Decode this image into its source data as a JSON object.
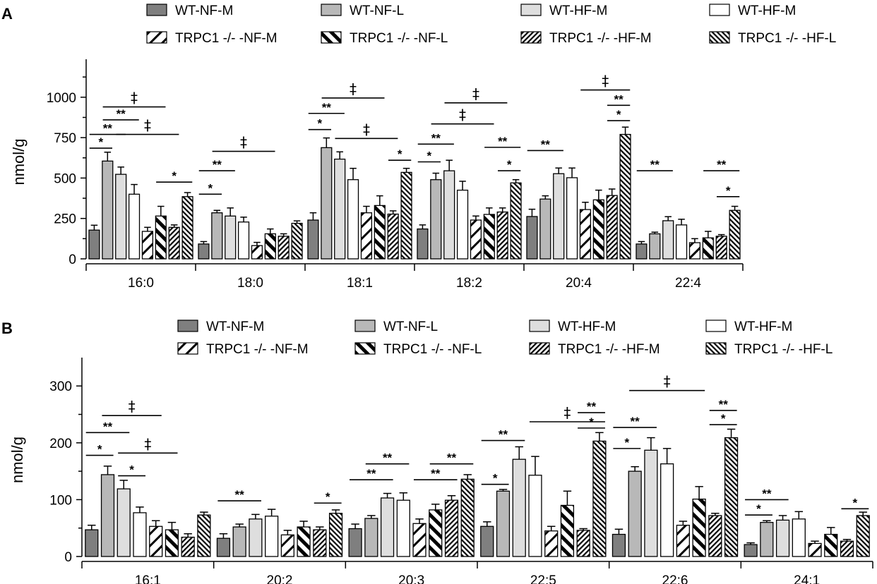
{
  "legend": [
    {
      "label": "WT-NF-M",
      "style": "darkgray"
    },
    {
      "label": "WT-NF-L",
      "style": "midgray"
    },
    {
      "label": "WT-HF-M",
      "style": "lightgray"
    },
    {
      "label": "WT-HF-M",
      "style": "white"
    },
    {
      "label": "TRPC1 -/- -NF-M",
      "style": "hatch-wide"
    },
    {
      "label": "TRPC1 -/- -NF-L",
      "style": "hatch-back-thick"
    },
    {
      "label": "TRPC1 -/- -HF-M",
      "style": "hatch-dense"
    },
    {
      "label": "TRPC1 -/- -HF-L",
      "style": "hatch-back-dense"
    }
  ],
  "colors": {
    "darkgray": "#7f7f7f",
    "midgray": "#b8b8b8",
    "lightgray": "#dedede",
    "white": "#ffffff"
  },
  "chart_data": [
    {
      "panel": "A",
      "type": "bar",
      "ylabel": "nmol/g",
      "ylim": [
        0,
        1200
      ],
      "yticks": [
        0,
        250,
        500,
        750,
        1000
      ],
      "categories": [
        "16:0",
        "18:0",
        "18:1",
        "18:2",
        "20:4",
        "22:4"
      ],
      "values": [
        [
          178,
          605,
          523,
          400,
          170,
          265,
          195,
          385
        ],
        [
          92,
          285,
          265,
          228,
          82,
          155,
          140,
          220
        ],
        [
          240,
          688,
          617,
          490,
          285,
          330,
          277,
          535
        ],
        [
          185,
          490,
          545,
          425,
          240,
          275,
          290,
          470
        ],
        [
          262,
          370,
          527,
          502,
          305,
          365,
          392,
          770
        ],
        [
          92,
          155,
          236,
          210,
          100,
          130,
          140,
          300
        ]
      ],
      "errors": [
        [
          30,
          55,
          45,
          60,
          25,
          60,
          15,
          25
        ],
        [
          15,
          15,
          50,
          30,
          20,
          30,
          15,
          15
        ],
        [
          45,
          60,
          45,
          70,
          40,
          60,
          20,
          25
        ],
        [
          25,
          40,
          65,
          55,
          25,
          40,
          25,
          20
        ],
        [
          45,
          20,
          35,
          60,
          45,
          60,
          40,
          45
        ],
        [
          15,
          10,
          25,
          35,
          25,
          40,
          10,
          25
        ]
      ],
      "annotations": [
        {
          "cat": 0,
          "from": 0,
          "to": 1,
          "y": 685,
          "text": "*"
        },
        {
          "cat": 0,
          "from": 0,
          "to": 2,
          "y": 770,
          "text": "**"
        },
        {
          "cat": 0,
          "from": 1,
          "to": 3,
          "y": 860,
          "text": "**"
        },
        {
          "cat": 0,
          "from": 1,
          "to": 5,
          "y": 940,
          "text": "‡"
        },
        {
          "cat": 0,
          "from": 2,
          "to": 6,
          "y": 770,
          "text": "‡"
        },
        {
          "cat": 0,
          "from": 5,
          "to": 7,
          "y": 475,
          "text": "*"
        },
        {
          "cat": 1,
          "from": 0,
          "to": 1,
          "y": 400,
          "text": "*"
        },
        {
          "cat": 1,
          "from": 0,
          "to": 2,
          "y": 545,
          "text": "**"
        },
        {
          "cat": 1,
          "from": 1,
          "to": 5,
          "y": 665,
          "text": "‡"
        },
        {
          "cat": 2,
          "from": 0,
          "to": 1,
          "y": 800,
          "text": "*"
        },
        {
          "cat": 2,
          "from": 0,
          "to": 2,
          "y": 900,
          "text": "**"
        },
        {
          "cat": 2,
          "from": 1,
          "to": 5,
          "y": 995,
          "text": "‡"
        },
        {
          "cat": 2,
          "from": 2,
          "to": 6,
          "y": 745,
          "text": "‡"
        },
        {
          "cat": 2,
          "from": 6,
          "to": 7,
          "y": 610,
          "text": "*"
        },
        {
          "cat": 3,
          "from": 0,
          "to": 1,
          "y": 600,
          "text": "*"
        },
        {
          "cat": 3,
          "from": 0,
          "to": 2,
          "y": 710,
          "text": "**"
        },
        {
          "cat": 3,
          "from": 1,
          "to": 5,
          "y": 835,
          "text": "‡"
        },
        {
          "cat": 3,
          "from": 2,
          "to": 6,
          "y": 965,
          "text": "‡"
        },
        {
          "cat": 3,
          "from": 5,
          "to": 7,
          "y": 690,
          "text": "**"
        },
        {
          "cat": 3,
          "from": 6,
          "to": 7,
          "y": 545,
          "text": "*"
        },
        {
          "cat": 4,
          "from": 0,
          "to": 2,
          "y": 670,
          "text": "**"
        },
        {
          "cat": 4,
          "from": 4,
          "to": 7,
          "y": 1045,
          "text": "‡"
        },
        {
          "cat": 4,
          "from": 6,
          "to": 7,
          "y": 950,
          "text": "**"
        },
        {
          "cat": 4,
          "from": 6,
          "to": 7,
          "y": 855,
          "text": "*"
        },
        {
          "cat": 5,
          "from": 0,
          "to": 2,
          "y": 545,
          "text": "**"
        },
        {
          "cat": 5,
          "from": 5,
          "to": 7,
          "y": 545,
          "text": "**"
        },
        {
          "cat": 5,
          "from": 6,
          "to": 7,
          "y": 385,
          "text": "*"
        }
      ]
    },
    {
      "panel": "B",
      "type": "bar",
      "ylabel": "nmol/g",
      "ylim": [
        0,
        340
      ],
      "yticks": [
        0,
        100,
        200,
        300
      ],
      "categories": [
        "16:1",
        "20:2",
        "20:3",
        "22:5",
        "22:6",
        "24:1"
      ],
      "values": [
        [
          47,
          144,
          119,
          77,
          53,
          47,
          34,
          73
        ],
        [
          32,
          52,
          66,
          71,
          38,
          52,
          47,
          76
        ],
        [
          49,
          67,
          103,
          99,
          58,
          82,
          99,
          136
        ],
        [
          53,
          115,
          171,
          143,
          45,
          90,
          46,
          203
        ],
        [
          39,
          150,
          187,
          163,
          55,
          101,
          72,
          209
        ],
        [
          21,
          60,
          64,
          66,
          23,
          39,
          27,
          72
        ]
      ],
      "errors": [
        [
          8,
          15,
          15,
          10,
          10,
          13,
          6,
          5
        ],
        [
          8,
          5,
          8,
          12,
          8,
          10,
          5,
          6
        ],
        [
          8,
          5,
          8,
          13,
          8,
          10,
          8,
          8
        ],
        [
          8,
          3,
          22,
          33,
          8,
          25,
          3,
          15
        ],
        [
          9,
          8,
          22,
          27,
          7,
          22,
          4,
          15
        ],
        [
          3,
          3,
          8,
          13,
          4,
          12,
          3,
          6
        ]
      ],
      "annotations": [
        {
          "cat": 0,
          "from": 0,
          "to": 1,
          "y": 178,
          "text": "*"
        },
        {
          "cat": 0,
          "from": 0,
          "to": 2,
          "y": 218,
          "text": "**"
        },
        {
          "cat": 0,
          "from": 1,
          "to": 4,
          "y": 248,
          "text": "‡"
        },
        {
          "cat": 0,
          "from": 2,
          "to": 3,
          "y": 142,
          "text": "*"
        },
        {
          "cat": 0,
          "from": 2,
          "to": 5,
          "y": 182,
          "text": "‡"
        },
        {
          "cat": 1,
          "from": 0,
          "to": 2,
          "y": 98,
          "text": "**"
        },
        {
          "cat": 1,
          "from": 6,
          "to": 7,
          "y": 94,
          "text": "*"
        },
        {
          "cat": 2,
          "from": 0,
          "to": 2,
          "y": 135,
          "text": "**"
        },
        {
          "cat": 2,
          "from": 1,
          "to": 3,
          "y": 163,
          "text": "**"
        },
        {
          "cat": 2,
          "from": 4,
          "to": 6,
          "y": 135,
          "text": "**"
        },
        {
          "cat": 2,
          "from": 5,
          "to": 7,
          "y": 163,
          "text": "**"
        },
        {
          "cat": 3,
          "from": 0,
          "to": 1,
          "y": 127,
          "text": "*"
        },
        {
          "cat": 3,
          "from": 0,
          "to": 2,
          "y": 204,
          "text": "**"
        },
        {
          "cat": 3,
          "from": 3,
          "to": 7,
          "y": 237,
          "text": "‡"
        },
        {
          "cat": 3,
          "from": 6,
          "to": 7,
          "y": 253,
          "text": "**"
        },
        {
          "cat": 3,
          "from": 6,
          "to": 7,
          "y": 226,
          "text": "*"
        },
        {
          "cat": 4,
          "from": 0,
          "to": 1,
          "y": 190,
          "text": "*"
        },
        {
          "cat": 4,
          "from": 0,
          "to": 2,
          "y": 227,
          "text": "**"
        },
        {
          "cat": 4,
          "from": 1,
          "to": 5,
          "y": 292,
          "text": "‡"
        },
        {
          "cat": 4,
          "from": 6,
          "to": 7,
          "y": 257,
          "text": "**"
        },
        {
          "cat": 4,
          "from": 6,
          "to": 7,
          "y": 232,
          "text": "*"
        },
        {
          "cat": 5,
          "from": 0,
          "to": 1,
          "y": 73,
          "text": "*"
        },
        {
          "cat": 5,
          "from": 0,
          "to": 2,
          "y": 100,
          "text": "**"
        },
        {
          "cat": 5,
          "from": 6,
          "to": 7,
          "y": 84,
          "text": "*"
        }
      ]
    }
  ]
}
